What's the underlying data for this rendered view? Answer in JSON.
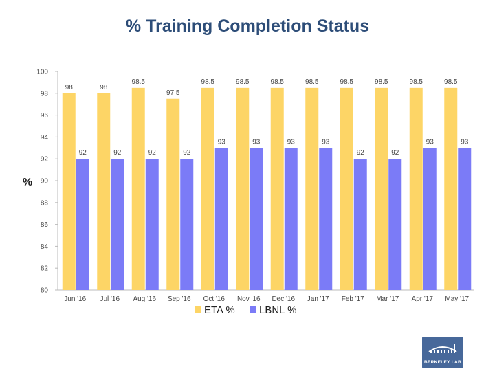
{
  "title": "% Training Completion Status",
  "chart_data": {
    "type": "bar",
    "title": "% Training Completion Status",
    "xlabel": "",
    "ylabel": "%",
    "ylim": [
      80,
      100
    ],
    "yticks": [
      80,
      82,
      84,
      86,
      88,
      90,
      92,
      94,
      96,
      98,
      100
    ],
    "grid": false,
    "legend_position": "bottom",
    "categories": [
      "Jun '16",
      "Jul '16",
      "Aug '16",
      "Sep '16",
      "Oct '16",
      "Nov '16",
      "Dec '16",
      "Jan '17",
      "Feb '17",
      "Mar '17",
      "Apr '17",
      "May '17"
    ],
    "series": [
      {
        "name": "ETA %",
        "color": "#fdd566",
        "values": [
          98,
          98,
          98.5,
          97.5,
          98.5,
          98.5,
          98.5,
          98.5,
          98.5,
          98.5,
          98.5,
          98.5
        ]
      },
      {
        "name": "LBNL %",
        "color": "#7b7bf7",
        "values": [
          92,
          92,
          92,
          92,
          93,
          93,
          93,
          93,
          92,
          92,
          93,
          93
        ]
      }
    ]
  },
  "logo": {
    "text": "BERKELEY LAB",
    "color": "#47689a"
  }
}
